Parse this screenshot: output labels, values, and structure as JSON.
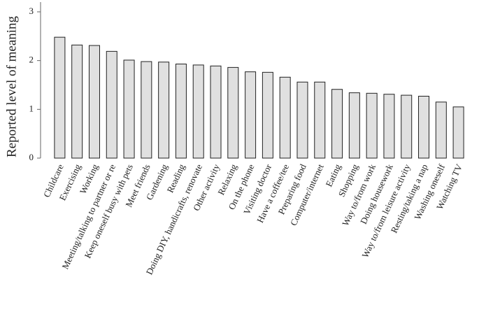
{
  "chart_data": {
    "type": "bar",
    "y_label": "Reported level of meaning",
    "categories": [
      "Childcare",
      "Exercising",
      "Working",
      "Meeting/talking to partner or re",
      "Keep oneself busy with pets",
      "Meet friends",
      "Gardening",
      "Reading",
      "Doing DIY, handicrafts, renovate",
      "Other activity",
      "Relaxing",
      "On the phone",
      "Visiting doctor",
      "Have a coffee/tee",
      "Preparing food",
      "Computer/internet",
      "Eating",
      "Shopping",
      "Way to/from work",
      "Doing housework",
      "Way to/from leisure activity",
      "Resting/taking a nap",
      "Washing oneself",
      "Watching TV"
    ],
    "values": [
      2.48,
      2.32,
      2.31,
      2.19,
      2.01,
      1.98,
      1.97,
      1.93,
      1.91,
      1.89,
      1.86,
      1.77,
      1.76,
      1.66,
      1.56,
      1.56,
      1.41,
      1.34,
      1.33,
      1.31,
      1.29,
      1.27,
      1.15,
      1.05
    ],
    "color": "#e0e0e0",
    "ylim": [
      0,
      3.2
    ],
    "yticks": [
      0,
      1,
      2,
      3
    ],
    "grid": false
  }
}
